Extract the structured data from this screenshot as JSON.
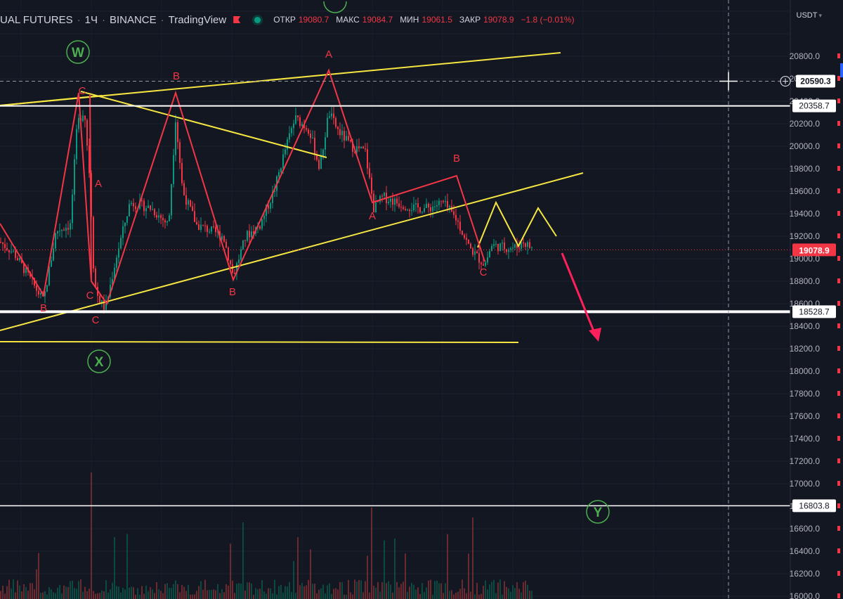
{
  "header": {
    "symbol": "UAL FUTURES",
    "interval": "1Ч",
    "exchange": "BINANCE",
    "source": "TradingView",
    "ohlc": {
      "open_label": "ОТКР",
      "open": "19080.7",
      "high_label": "МАКС",
      "high": "19084.7",
      "low_label": "МИН",
      "low": "19061.5",
      "close_label": "ЗАКР",
      "close": "19078.9",
      "change": "−1.8 (−0.01%)"
    }
  },
  "price_axis": {
    "currency": "USDT",
    "ticks": [
      "20800.0",
      "20600.0",
      "20400.0",
      "20200.0",
      "20000.0",
      "19800.0",
      "19600.0",
      "19400.0",
      "19200.0",
      "19000.0",
      "18800.0",
      "18600.0",
      "18400.0",
      "18200.0",
      "18000.0",
      "17800.0",
      "17600.0",
      "17400.0",
      "17200.0",
      "17000.0",
      "16800.0",
      "16600.0",
      "16400.0",
      "16200.0",
      "16000.0"
    ]
  },
  "colors": {
    "background": "#131722",
    "bull": "#089981",
    "bear": "#f23645",
    "wave": "#f23645",
    "trendline": "#f5e642",
    "level": "#ffffff",
    "wave_circle": "#4caf50",
    "arrow": "#ff1f5a"
  },
  "chart_data": {
    "type": "candlestick",
    "y_range": [
      15950,
      20960
    ],
    "level_lines": [
      {
        "price": 20358.7,
        "label": "20358.7",
        "weight": 2
      },
      {
        "price": 18528.7,
        "label": "18528.7",
        "weight": 4
      },
      {
        "price": 16803.8,
        "label": "16803.8",
        "weight": 1.5
      }
    ],
    "last_price": {
      "price": 19078.9,
      "label": "19078.9"
    },
    "crosshair": {
      "price": 20590.3,
      "label": "20590.3"
    },
    "wave_circles": [
      "W",
      "X",
      "Y"
    ],
    "wave_letters": [
      "C",
      "B",
      "A",
      "A",
      "C",
      "B",
      "C",
      "B",
      "A",
      "B",
      "C"
    ]
  }
}
